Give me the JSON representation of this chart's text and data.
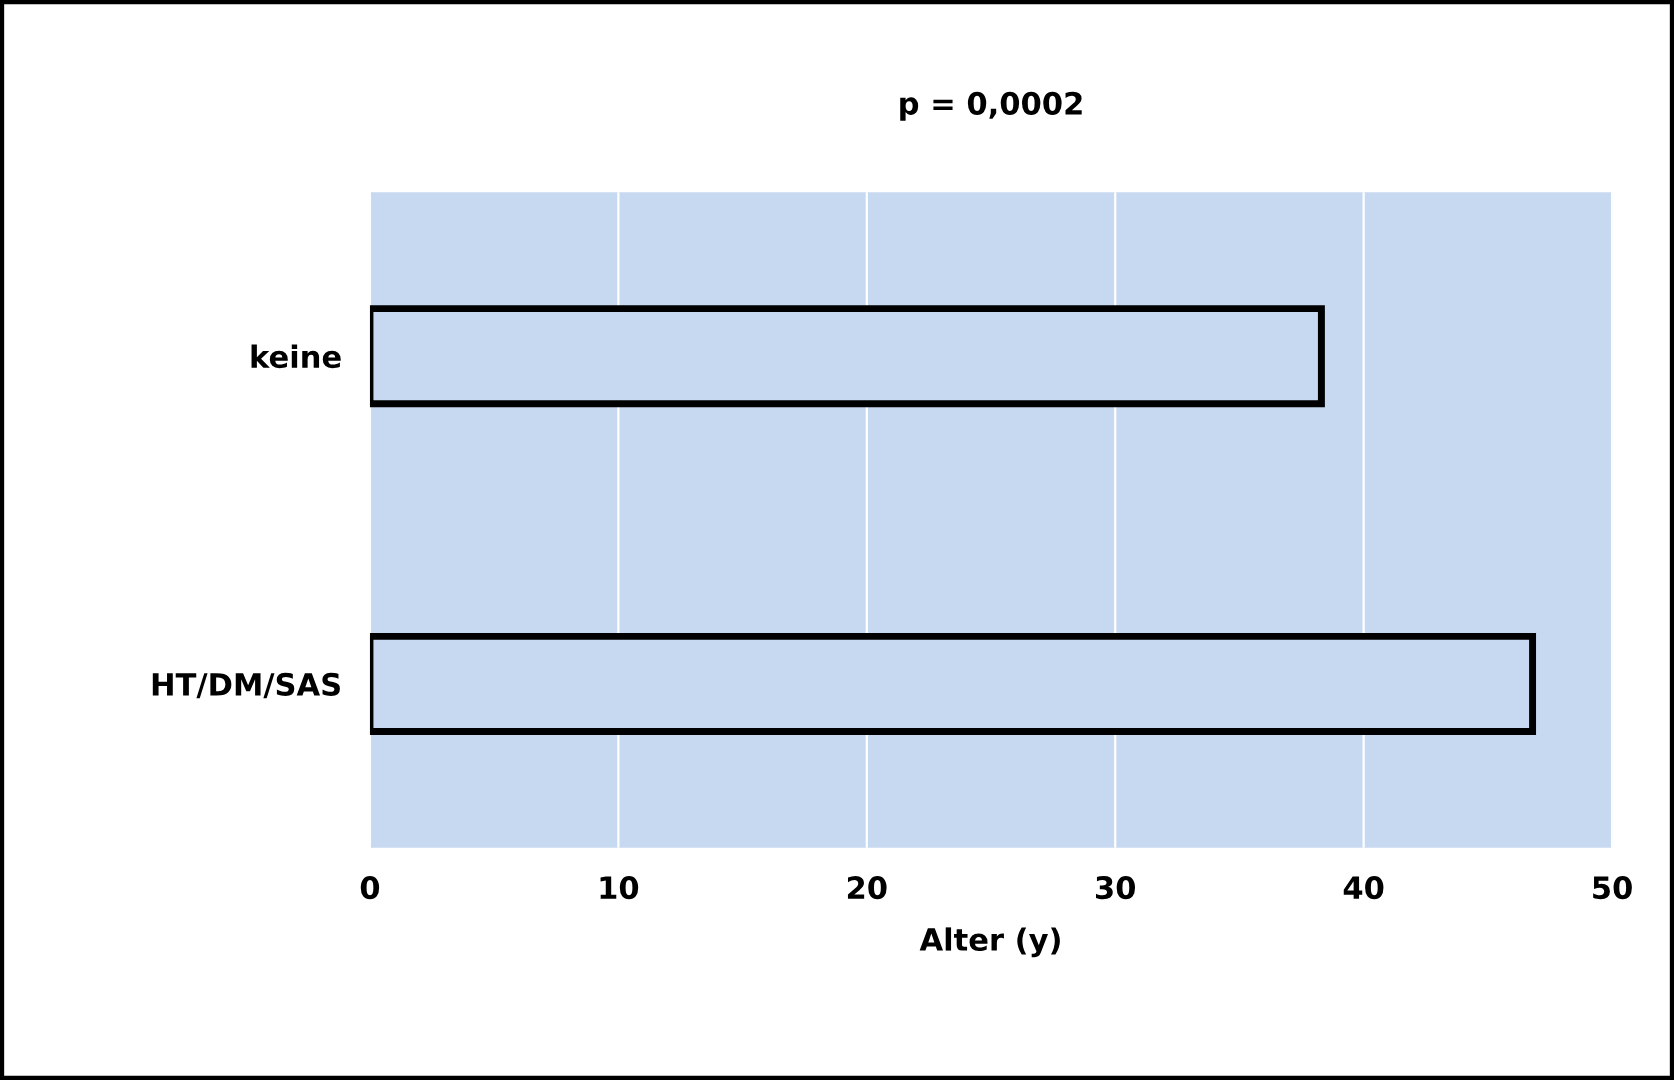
{
  "chart_data": {
    "type": "bar",
    "orientation": "horizontal",
    "title": "p = 0,0002",
    "xlabel": "Alter (y)",
    "categories": [
      "keine",
      "HT/DM/SAS"
    ],
    "values": [
      38.3,
      46.8
    ],
    "color": "#c6d9f0",
    "xlim": [
      0,
      50
    ],
    "xticks": [
      0,
      10,
      20,
      30,
      40,
      50
    ],
    "grid": "x"
  }
}
